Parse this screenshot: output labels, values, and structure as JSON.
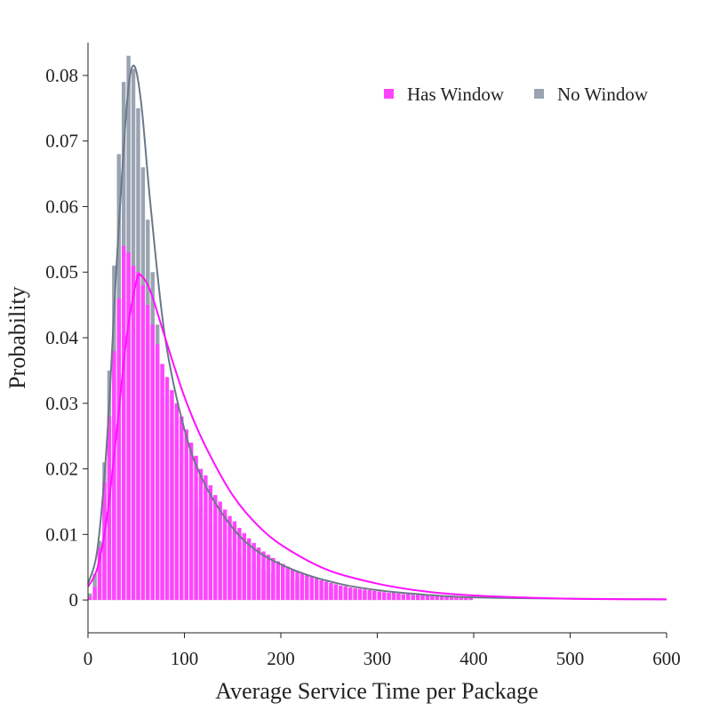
{
  "chart_data": {
    "type": "bar",
    "xlabel": "Average Service Time per Package",
    "ylabel": "Probability",
    "xlim": [
      0,
      600
    ],
    "ylim": [
      -0.005,
      0.085
    ],
    "x_ticks": [
      "0",
      "100",
      "200",
      "300",
      "400",
      "500",
      "600"
    ],
    "y_ticks": [
      "0",
      "0.01",
      "0.02",
      "0.03",
      "0.04",
      "0.05",
      "0.06",
      "0.07",
      "0.08"
    ],
    "grid": false,
    "legend_position": "top-right",
    "bin_width": 5,
    "bin_start": 0,
    "series": [
      {
        "name": "No Window",
        "color": "#9aa3b1",
        "line_color": "#6b7888",
        "values": [
          0.001,
          0.004,
          0.009,
          0.021,
          0.035,
          0.051,
          0.068,
          0.079,
          0.083,
          0.081,
          0.075,
          0.066,
          0.058,
          0.05,
          0.042,
          0.036,
          0.031,
          0.027,
          0.024,
          0.021,
          0.019,
          0.017,
          0.015,
          0.014,
          0.0125,
          0.0115,
          0.0105,
          0.0095,
          0.0088,
          0.008,
          0.0074,
          0.0068,
          0.0063,
          0.0058,
          0.0054,
          0.005,
          0.0047,
          0.0044,
          0.0041,
          0.0039,
          0.0036,
          0.0034,
          0.0032,
          0.003,
          0.0028,
          0.0027,
          0.0025,
          0.0024,
          0.0022,
          0.0021,
          0.002,
          0.0019,
          0.0018,
          0.0017,
          0.0016,
          0.0015,
          0.0014,
          0.0013,
          0.0012,
          0.0012,
          0.0011,
          0.001,
          0.001,
          0.0009,
          0.0009,
          0.0008,
          0.0008,
          0.0007,
          0.0007,
          0.0006,
          0.0006,
          0.0006,
          0.0005,
          0.0005,
          0.0005,
          0.0004,
          0.0004,
          0.0004,
          0.0004,
          0.0003
        ],
        "curve": [
          [
            0,
            0.0025
          ],
          [
            10,
            0.008
          ],
          [
            20,
            0.025
          ],
          [
            30,
            0.052
          ],
          [
            40,
            0.075
          ],
          [
            47,
            0.0815
          ],
          [
            55,
            0.076
          ],
          [
            65,
            0.06
          ],
          [
            80,
            0.04
          ],
          [
            100,
            0.026
          ],
          [
            120,
            0.018
          ],
          [
            150,
            0.011
          ],
          [
            180,
            0.007
          ],
          [
            220,
            0.0042
          ],
          [
            260,
            0.0025
          ],
          [
            300,
            0.0015
          ],
          [
            350,
            0.0008
          ],
          [
            400,
            0.0004
          ],
          [
            500,
            0.0002
          ],
          [
            600,
            0.0001
          ]
        ]
      },
      {
        "name": "Has Window",
        "color": "#ff44ff",
        "line_color": "#ff10ff",
        "values": [
          0.0005,
          0.002,
          0.008,
          0.018,
          0.028,
          0.038,
          0.046,
          0.054,
          0.053,
          0.051,
          0.05,
          0.048,
          0.045,
          0.042,
          0.039,
          0.036,
          0.034,
          0.032,
          0.03,
          0.028,
          0.026,
          0.024,
          0.022,
          0.02,
          0.019,
          0.0175,
          0.016,
          0.015,
          0.0138,
          0.0128,
          0.012,
          0.011,
          0.0102,
          0.0094,
          0.0087,
          0.008,
          0.0074,
          0.0069,
          0.0064,
          0.0059,
          0.0055,
          0.0051,
          0.0047,
          0.0044,
          0.0041,
          0.0038,
          0.0035,
          0.0033,
          0.003,
          0.0028,
          0.0026,
          0.0024,
          0.0022,
          0.0021,
          0.0019,
          0.0018,
          0.0017,
          0.0016,
          0.0015,
          0.0014,
          0.0013,
          0.0012,
          0.0011,
          0.0011,
          0.001,
          0.0009,
          0.0009,
          0.0008,
          0.0008,
          0.0007,
          0.0007,
          0.0006,
          0.0006,
          0.0006,
          0.0005,
          0.0005,
          0.0005,
          0.0004,
          0.0004,
          0.0004
        ],
        "curve": [
          [
            0,
            0.002
          ],
          [
            10,
            0.005
          ],
          [
            20,
            0.013
          ],
          [
            30,
            0.026
          ],
          [
            40,
            0.04
          ],
          [
            50,
            0.0485
          ],
          [
            55,
            0.0495
          ],
          [
            65,
            0.047
          ],
          [
            80,
            0.04
          ],
          [
            100,
            0.031
          ],
          [
            120,
            0.024
          ],
          [
            150,
            0.016
          ],
          [
            180,
            0.0108
          ],
          [
            210,
            0.0075
          ],
          [
            250,
            0.0045
          ],
          [
            300,
            0.0025
          ],
          [
            350,
            0.0013
          ],
          [
            400,
            0.0007
          ],
          [
            500,
            0.0002
          ],
          [
            600,
            0.0001
          ]
        ]
      }
    ]
  }
}
